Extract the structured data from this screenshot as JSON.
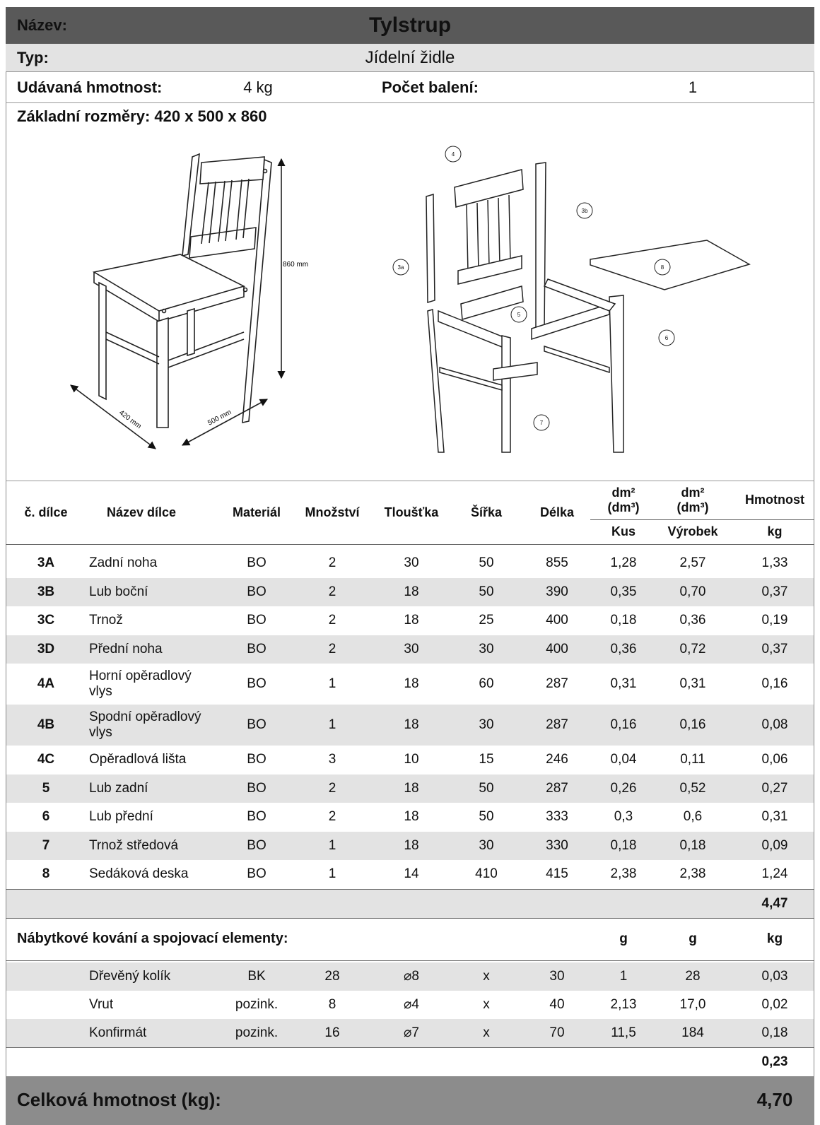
{
  "header": {
    "name_label": "Název:",
    "name": "Tylstrup",
    "type_label": "Typ:",
    "type": "Jídelní židle",
    "weight_label": "Udávaná hmotnost:",
    "weight": "4 kg",
    "packages_label": "Počet balení:",
    "packages": "1",
    "dimensions": "Základní rozměry: 420 x 500 x 860"
  },
  "drawings": {
    "height": "860 mm",
    "width": "420 mm",
    "depth": "500 mm",
    "parts": [
      "4",
      "3b",
      "3a",
      "8",
      "5",
      "6",
      "7"
    ]
  },
  "table": {
    "columns": [
      "č. dílce",
      "Název dílce",
      "Materiál",
      "Množství",
      "Tloušťka",
      "Šířka",
      "Délka",
      "dm² (dm³)",
      "dm² (dm³)",
      "Hmotnost"
    ],
    "subcolumns": [
      "Kus",
      "Výrobek",
      "kg"
    ],
    "rows": [
      [
        "3A",
        "Zadní noha",
        "BO",
        "2",
        "30",
        "50",
        "855",
        "1,28",
        "2,57",
        "1,33"
      ],
      [
        "3B",
        "Lub boční",
        "BO",
        "2",
        "18",
        "50",
        "390",
        "0,35",
        "0,70",
        "0,37"
      ],
      [
        "3C",
        "Trnož",
        "BO",
        "2",
        "18",
        "25",
        "400",
        "0,18",
        "0,36",
        "0,19"
      ],
      [
        "3D",
        "Přední noha",
        "BO",
        "2",
        "30",
        "30",
        "400",
        "0,36",
        "0,72",
        "0,37"
      ],
      [
        "4A",
        "Horní opěradlový vlys",
        "BO",
        "1",
        "18",
        "60",
        "287",
        "0,31",
        "0,31",
        "0,16"
      ],
      [
        "4B",
        "Spodní opěradlový vlys",
        "BO",
        "1",
        "18",
        "30",
        "287",
        "0,16",
        "0,16",
        "0,08"
      ],
      [
        "4C",
        "Opěradlová lišta",
        "BO",
        "3",
        "10",
        "15",
        "246",
        "0,04",
        "0,11",
        "0,06"
      ],
      [
        "5",
        "Lub zadní",
        "BO",
        "2",
        "18",
        "50",
        "287",
        "0,26",
        "0,52",
        "0,27"
      ],
      [
        "6",
        "Lub přední",
        "BO",
        "2",
        "18",
        "50",
        "333",
        "0,3",
        "0,6",
        "0,31"
      ],
      [
        "7",
        "Trnož středová",
        "BO",
        "1",
        "18",
        "30",
        "330",
        "0,18",
        "0,18",
        "0,09"
      ],
      [
        "8",
        "Sedáková deska",
        "BO",
        "1",
        "14",
        "410",
        "415",
        "2,38",
        "2,38",
        "1,24"
      ]
    ],
    "subtotal": "4,47"
  },
  "hardware": {
    "title": "Nábytkové kování a spojovací elementy:",
    "units": [
      "g",
      "g",
      "kg"
    ],
    "rows": [
      [
        "Dřevěný kolík",
        "BK",
        "28",
        "⌀8",
        "x",
        "30",
        "1",
        "28",
        "0,03"
      ],
      [
        "Vrut",
        "pozink.",
        "8",
        "⌀4",
        "x",
        "40",
        "2,13",
        "17,0",
        "0,02"
      ],
      [
        "Konfirmát",
        "pozink.",
        "16",
        "⌀7",
        "x",
        "70",
        "11,5",
        "184",
        "0,18"
      ]
    ],
    "subtotal": "0,23"
  },
  "total": {
    "label": "Celková hmotnost (kg):",
    "value": "4,70"
  }
}
